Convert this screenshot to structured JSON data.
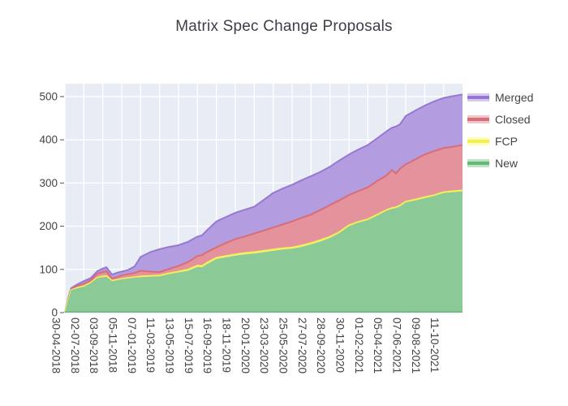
{
  "title": "Matrix Spec Change Proposals",
  "legend": {
    "entries": [
      {
        "label": "Merged",
        "fill": "#b39de0",
        "line": "#9678d2"
      },
      {
        "label": "Closed",
        "fill": "#e4939d",
        "line": "#d96c77"
      },
      {
        "label": "FCP",
        "fill": "#fbfa7d",
        "line": "#f2ef57"
      },
      {
        "label": "New",
        "fill": "#8bc997",
        "line": "#62ba77"
      }
    ]
  },
  "chart_data": {
    "type": "area",
    "stacked": true,
    "title": "Matrix Spec Change Proposals",
    "xlabel": "",
    "ylabel": "",
    "grid": true,
    "plot_bg": "#e8ecf5",
    "grid_color": "#ffffff",
    "tick_text_color": "#444444",
    "legend_position": "right",
    "y_ticks": [
      0,
      100,
      200,
      300,
      400,
      500
    ],
    "y_range": [
      0,
      530
    ],
    "x_tick_labels": [
      "30-04-2018",
      "02-07-2018",
      "03-09-2018",
      "05-11-2018",
      "07-01-2019",
      "11-03-2019",
      "13-05-2019",
      "15-07-2019",
      "16-09-2019",
      "18-11-2019",
      "20-01-2020",
      "23-03-2020",
      "25-05-2020",
      "27-07-2020",
      "28-09-2020",
      "30-11-2020",
      "01-02-2021",
      "05-04-2021",
      "07-06-2021",
      "09-08-2021",
      "11-10-2021"
    ],
    "x_range_iso": [
      "2018-04-30",
      "2021-12-13"
    ],
    "series_order_bottom_to_top": [
      "New",
      "FCP",
      "Closed",
      "Merged"
    ],
    "dates": [
      "2018-04-30",
      "2018-05-11",
      "2018-05-21",
      "2018-06-12",
      "2018-07-02",
      "2018-07-25",
      "2018-08-16",
      "2018-09-03",
      "2018-09-15",
      "2018-10-04",
      "2018-10-20",
      "2018-11-05",
      "2018-11-27",
      "2018-12-18",
      "2019-01-07",
      "2019-02-08",
      "2019-03-11",
      "2019-04-11",
      "2019-05-13",
      "2019-06-14",
      "2019-07-15",
      "2019-07-30",
      "2019-08-15",
      "2019-09-16",
      "2019-10-17",
      "2019-11-18",
      "2019-12-18",
      "2020-01-20",
      "2020-02-21",
      "2020-03-23",
      "2020-04-23",
      "2020-05-25",
      "2020-06-24",
      "2020-07-27",
      "2020-08-28",
      "2020-09-28",
      "2020-10-29",
      "2020-11-30",
      "2020-12-30",
      "2021-02-01",
      "2021-03-05",
      "2021-04-05",
      "2021-04-22",
      "2021-05-06",
      "2021-05-19",
      "2021-06-07",
      "2021-07-10",
      "2021-08-09",
      "2021-09-10",
      "2021-10-11",
      "2021-11-11",
      "2021-12-13"
    ],
    "series": [
      {
        "name": "New",
        "fill": "#8bc997",
        "line": "#62ba77",
        "values": [
          0,
          30,
          52,
          57,
          60,
          68,
          80,
          82,
          83,
          73,
          75,
          77,
          79,
          81,
          82,
          83,
          84,
          89,
          93,
          97,
          106,
          105,
          112,
          124,
          128,
          132,
          135,
          137,
          140,
          143,
          146,
          148,
          152,
          158,
          165,
          173,
          184,
          200,
          208,
          214,
          225,
          236,
          240,
          242,
          246,
          255,
          260,
          265,
          270,
          277,
          279,
          281
        ]
      },
      {
        "name": "FCP",
        "fill": "#fbfa7d",
        "line": "#f2ef57",
        "values": [
          0,
          0,
          0,
          1,
          1,
          1,
          1,
          2,
          2,
          1,
          1,
          1,
          1,
          1,
          2,
          2,
          2,
          2,
          2,
          3,
          3,
          3,
          3,
          3,
          3,
          3,
          3,
          3,
          3,
          3,
          3,
          3,
          3,
          3,
          3,
          3,
          2,
          2,
          2,
          2,
          2,
          2,
          2,
          2,
          2,
          2,
          2,
          2,
          2,
          2,
          2,
          2
        ]
      },
      {
        "name": "Closed",
        "fill": "#e4939d",
        "line": "#d96c77",
        "values": [
          0,
          2,
          3,
          4,
          6,
          6,
          9,
          10,
          11,
          5,
          6,
          8,
          9,
          10,
          13,
          10,
          8,
          10,
          13,
          17,
          22,
          25,
          25,
          24,
          30,
          35,
          38,
          43,
          47,
          51,
          55,
          60,
          64,
          66,
          70,
          73,
          74,
          70,
          71,
          74,
          78,
          80,
          88,
          78,
          85,
          86,
          93,
          99,
          102,
          102,
          103,
          105
        ]
      },
      {
        "name": "Merged",
        "fill": "#b39de0",
        "line": "#9678d2",
        "values": [
          0,
          2,
          2,
          4,
          6,
          5,
          6,
          8,
          9,
          9,
          10,
          9,
          10,
          15,
          32,
          45,
          53,
          51,
          48,
          47,
          45,
          46,
          50,
          60,
          60,
          61,
          62,
          62,
          71,
          80,
          83,
          85,
          87,
          89,
          88,
          89,
          92,
          94,
          96,
          98,
          99,
          102,
          98,
          109,
          103,
          112,
          113,
          113,
          115,
          116,
          117,
          117
        ]
      }
    ]
  }
}
